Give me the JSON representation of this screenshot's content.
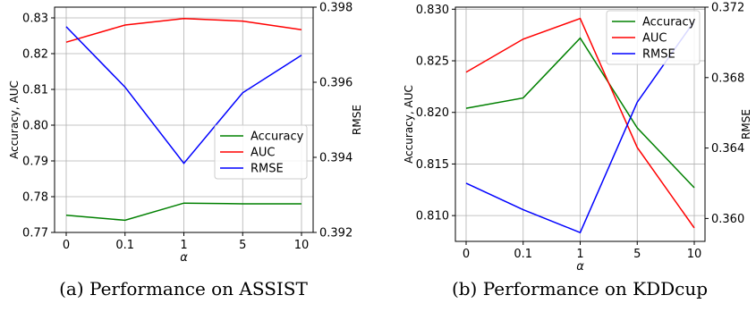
{
  "chart_data": [
    {
      "type": "line",
      "caption": "(a) Performance on ASSIST",
      "categories": [
        "0",
        "0.1",
        "1",
        "5",
        "10"
      ],
      "xlabel": "α",
      "ylabel": "Accuracy, AUC",
      "y2label": "RMSE",
      "ylim": [
        0.77,
        0.833
      ],
      "y2lim": [
        0.392,
        0.398
      ],
      "yticks": [
        "0.77",
        "0.78",
        "0.79",
        "0.80",
        "0.81",
        "0.82",
        "0.83"
      ],
      "y2ticks": [
        "0.392",
        "0.394",
        "0.396",
        "0.398"
      ],
      "grid": true,
      "legend_position": "center-right",
      "series": [
        {
          "name": "Accuracy",
          "axis": "left",
          "color": "#008000",
          "values": [
            0.7748,
            0.7734,
            0.7782,
            0.778,
            0.778
          ]
        },
        {
          "name": "AUC",
          "axis": "left",
          "color": "#ff0000",
          "values": [
            0.8232,
            0.828,
            0.8298,
            0.8291,
            0.8267
          ]
        },
        {
          "name": "RMSE",
          "axis": "right",
          "color": "#0000ff",
          "values": [
            0.39748,
            0.39587,
            0.39384,
            0.39572,
            0.39672
          ]
        }
      ]
    },
    {
      "type": "line",
      "caption": "(b) Performance on KDDcup",
      "categories": [
        "0",
        "0.1",
        "1",
        "5",
        "10"
      ],
      "xlabel": "α",
      "ylabel": "Accuracy, AUC",
      "y2label": "RMSE",
      "ylim": [
        0.8075,
        0.8302
      ],
      "y2lim": [
        0.3587,
        0.372
      ],
      "yticks": [
        "0.810",
        "0.815",
        "0.820",
        "0.825",
        "0.830"
      ],
      "y2ticks": [
        "0.360",
        "0.364",
        "0.368",
        "0.372"
      ],
      "grid": true,
      "legend_position": "upper-right",
      "series": [
        {
          "name": "Accuracy",
          "axis": "left",
          "color": "#008000",
          "values": [
            0.8204,
            0.8214,
            0.8272,
            0.8185,
            0.8127
          ]
        },
        {
          "name": "AUC",
          "axis": "left",
          "color": "#ff0000",
          "values": [
            0.8239,
            0.8271,
            0.8291,
            0.8166,
            0.8088
          ]
        },
        {
          "name": "RMSE",
          "axis": "right",
          "color": "#0000ff",
          "values": [
            0.362,
            0.3605,
            0.3592,
            0.3666,
            0.3712
          ]
        }
      ]
    }
  ]
}
